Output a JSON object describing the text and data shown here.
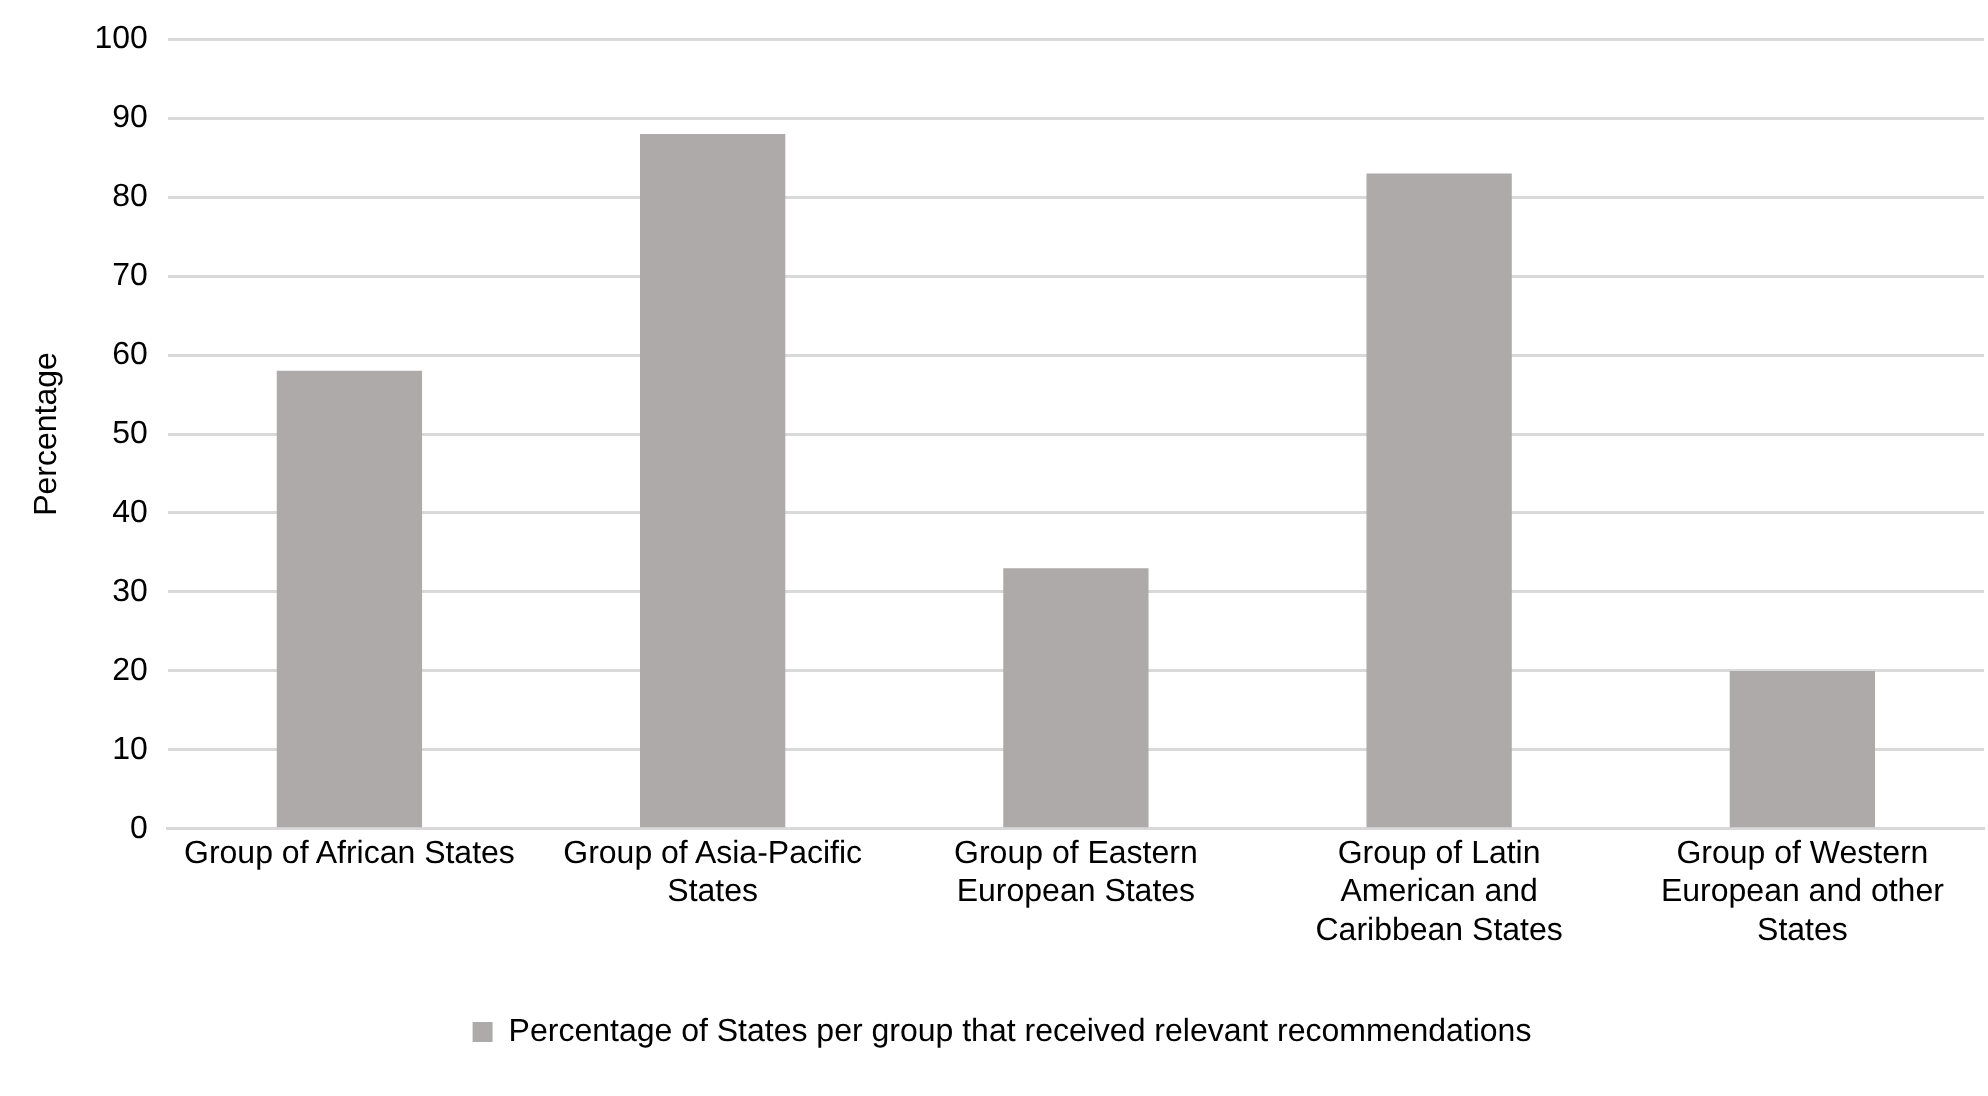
{
  "chart_data": {
    "type": "bar",
    "ylabel": "Percentage",
    "categories": [
      "Group of African States",
      "Group of Asia-Pacific States",
      "Group of Eastern European States",
      "Group of Latin American and Caribbean States",
      "Group of Western European and other States"
    ],
    "series": [
      {
        "name": "Percentage of States per group that received relevant recommendations",
        "color": "#aeaaaa",
        "values": [
          58,
          88,
          33,
          83,
          20
        ]
      }
    ],
    "ylim": [
      0,
      100
    ],
    "yticks": [
      0,
      10,
      20,
      30,
      40,
      50,
      60,
      70,
      80,
      90,
      100
    ],
    "grid": "y",
    "legend": "bottom"
  }
}
